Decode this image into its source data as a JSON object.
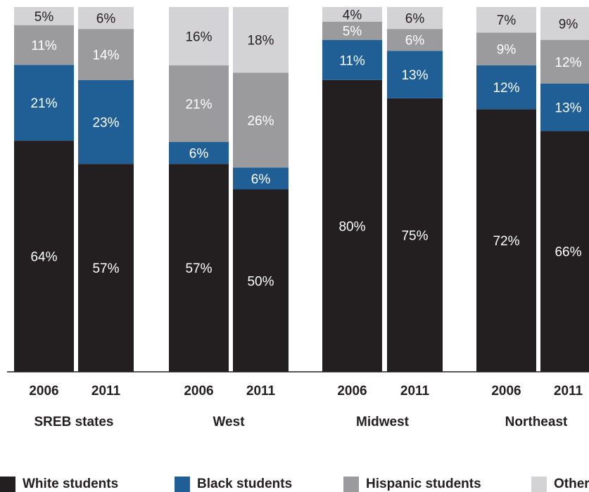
{
  "chart_data": {
    "type": "bar",
    "stacked": true,
    "groups": [
      "SREB states",
      "West",
      "Midwest",
      "Northeast"
    ],
    "categories": [
      "2006",
      "2011",
      "2006",
      "2011",
      "2006",
      "2011",
      "2006",
      "2011"
    ],
    "series": [
      {
        "name": "White students",
        "color": "#231f20",
        "label_color": "#ffffff",
        "values": [
          64,
          57,
          57,
          50,
          80,
          75,
          72,
          66
        ]
      },
      {
        "name": "Black students",
        "color": "#1f5f96",
        "label_color": "#ffffff",
        "values": [
          21,
          23,
          6,
          6,
          11,
          13,
          12,
          13
        ]
      },
      {
        "name": "Hispanic students",
        "color": "#9b9b9e",
        "label_color": "#ffffff",
        "values": [
          11,
          14,
          21,
          26,
          5,
          6,
          9,
          12
        ]
      },
      {
        "name": "Other",
        "color": "#d3d3d5",
        "label_color": "#231f20",
        "values": [
          5,
          6,
          16,
          18,
          4,
          6,
          7,
          9
        ]
      }
    ],
    "value_suffix": "%",
    "ylim": [
      0,
      100
    ],
    "legend_position": "bottom",
    "grid": false
  }
}
